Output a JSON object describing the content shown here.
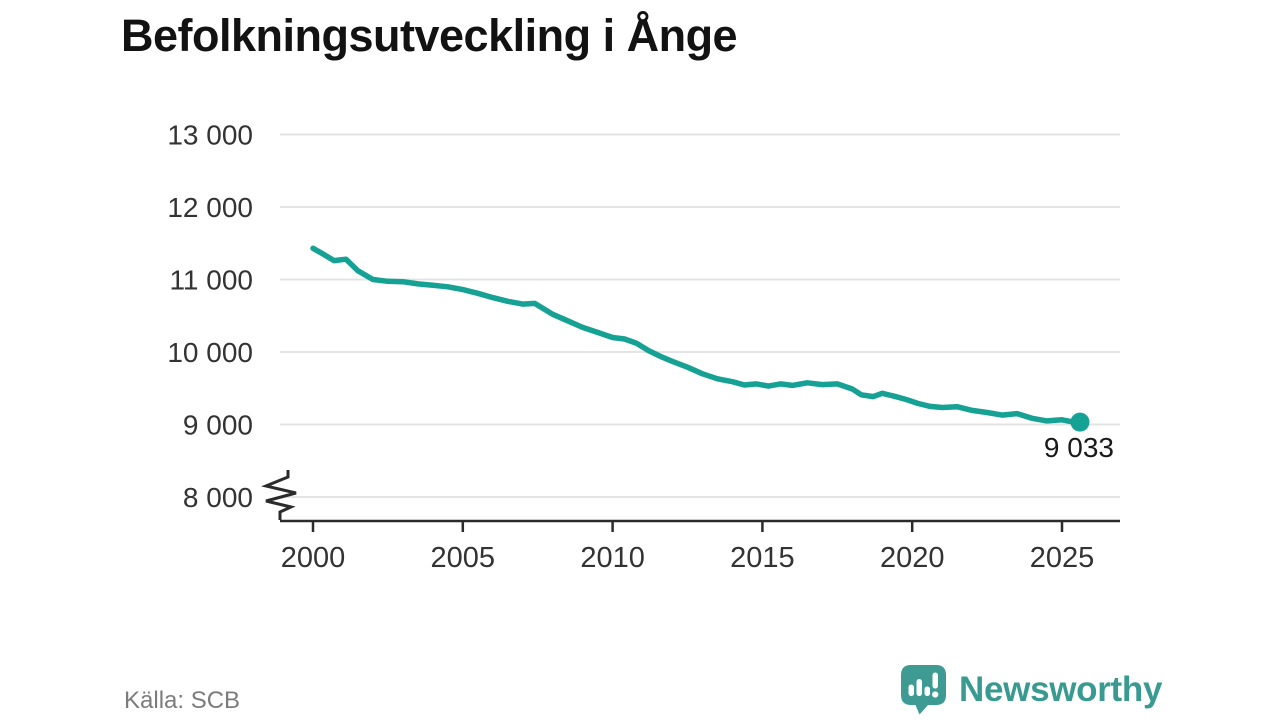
{
  "title": "Befolkningsutveckling i Ånge",
  "source": "Källa: SCB",
  "brand": {
    "name": "Newsworthy",
    "color": "#399a91"
  },
  "icons": {
    "brand_logo": "bar-chart-speech-bubble-icon"
  },
  "colors": {
    "line": "#16a195",
    "grid": "#e3e3e3",
    "axis": "#2b2b2b",
    "tick_label": "#333333",
    "end_label": "#1a1a1a",
    "logo_teal": "#3d9b93"
  },
  "chart_data": {
    "type": "line",
    "title": "Befolkningsutveckling i Ånge",
    "xlabel": "",
    "ylabel": "",
    "grid": "horizontal",
    "legend": "none",
    "y_axis_break": true,
    "ylim": [
      8000,
      13000
    ],
    "xlim": [
      1998.9,
      2026.9
    ],
    "yticks": {
      "values": [
        8000,
        9000,
        10000,
        11000,
        12000,
        13000
      ],
      "labels": [
        "8 000",
        "9 000",
        "10 000",
        "11 000",
        "12 000",
        "13 000"
      ]
    },
    "xticks": {
      "values": [
        2000,
        2005,
        2010,
        2015,
        2020,
        2025
      ],
      "labels": [
        "2000",
        "2005",
        "2010",
        "2015",
        "2020",
        "2025"
      ]
    },
    "x": [
      2000,
      2000.3,
      2000.7,
      2001.1,
      2001.5,
      2002,
      2002.5,
      2003,
      2003.5,
      2004,
      2004.5,
      2005,
      2005.5,
      2006,
      2006.5,
      2007,
      2007.4,
      2008,
      2008.5,
      2009,
      2009.5,
      2010,
      2010.4,
      2010.8,
      2011.2,
      2011.6,
      2012,
      2012.5,
      2013,
      2013.5,
      2014,
      2014.4,
      2014.8,
      2015.2,
      2015.6,
      2016,
      2016.5,
      2017,
      2017.5,
      2018,
      2018.3,
      2018.7,
      2019,
      2019.4,
      2019.8,
      2020.2,
      2020.6,
      2021,
      2021.5,
      2022,
      2022.5,
      2023,
      2023.5,
      2024,
      2024.5,
      2025,
      2025.3,
      2025.6
    ],
    "series": [
      {
        "name": "Befolkning",
        "values": [
          11430,
          11360,
          11260,
          11280,
          11120,
          11000,
          10975,
          10970,
          10940,
          10920,
          10900,
          10860,
          10810,
          10750,
          10700,
          10660,
          10670,
          10520,
          10430,
          10340,
          10270,
          10200,
          10180,
          10120,
          10020,
          9940,
          9870,
          9790,
          9700,
          9630,
          9590,
          9545,
          9560,
          9530,
          9560,
          9540,
          9575,
          9550,
          9560,
          9490,
          9410,
          9385,
          9430,
          9390,
          9345,
          9290,
          9250,
          9235,
          9245,
          9195,
          9165,
          9130,
          9150,
          9085,
          9050,
          9065,
          9040,
          9033
        ]
      }
    ],
    "end_dot": true,
    "end_label": "9 033"
  }
}
